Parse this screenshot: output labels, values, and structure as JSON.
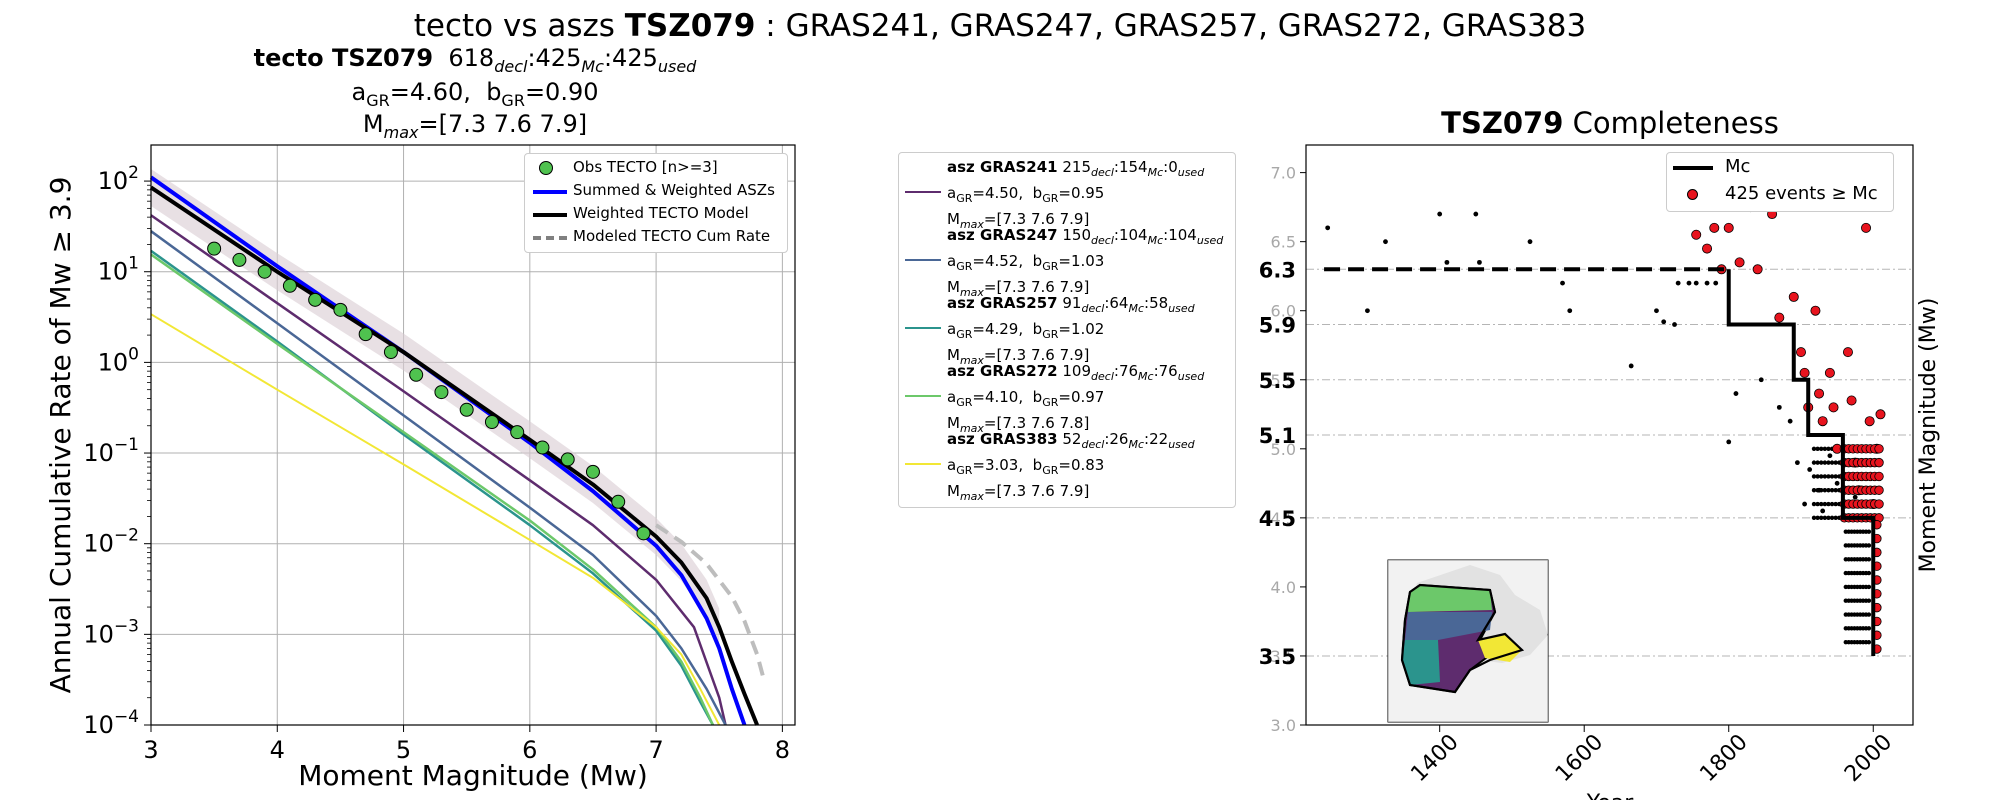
{
  "title": {
    "prefix": "tecto vs aszs ",
    "zone": "TSZ079",
    "suffix": " : GRAS241, GRAS247, GRAS257, GRAS272, GRAS383"
  },
  "left_panel": {
    "title_bold": "tecto TSZ079",
    "counts": {
      "decl": "618",
      "mc": "425",
      "used": "425"
    },
    "sub_decl": "decl",
    "sub_mc": "Mc",
    "sub_used": "used",
    "a_gr": "4.60",
    "b_gr": "0.90",
    "mmax": "[7.3 7.6 7.9]"
  },
  "chart_data": [
    {
      "type": "line",
      "title": "",
      "xlabel": "Moment Magnitude (Mw)",
      "ylabel": "Annual Cumulative Rate of Mw  ≥  3.9",
      "xlim": [
        3,
        8.1
      ],
      "ylim": [
        0.0001,
        250
      ],
      "yscale": "log",
      "xticks": [
        "3",
        "4",
        "5",
        "6",
        "7",
        "8"
      ],
      "yticks": [
        {
          "base": "10",
          "exp": "2",
          "value": 100
        },
        {
          "base": "10",
          "exp": "1",
          "value": 10
        },
        {
          "base": "10",
          "exp": "0",
          "value": 1
        },
        {
          "base": "10",
          "exp": "−1",
          "value": 0.1
        },
        {
          "base": "10",
          "exp": "−2",
          "value": 0.01
        },
        {
          "base": "10",
          "exp": "−3",
          "value": 0.001
        },
        {
          "base": "10",
          "exp": "−4",
          "value": 0.0001
        }
      ],
      "grid": true,
      "legend_position": "top-right",
      "legend": [
        {
          "label": "Obs TECTO [n>=3]",
          "kind": "marker",
          "color": "#4fc24f"
        },
        {
          "label": "Summed & Weighted ASZs",
          "kind": "line",
          "color": "#0000ff"
        },
        {
          "label": "Weighted TECTO Model",
          "kind": "line",
          "color": "#000000"
        },
        {
          "label": "Modeled TECTO Cum Rate",
          "kind": "dash",
          "color": "#808080"
        }
      ],
      "observed": {
        "x": [
          3.5,
          3.7,
          3.9,
          4.1,
          4.3,
          4.5,
          4.7,
          4.9,
          5.1,
          5.3,
          5.5,
          5.7,
          5.9,
          6.1,
          6.3,
          6.5,
          6.7,
          6.9
        ],
        "y": [
          18,
          13.5,
          10,
          7,
          4.9,
          3.8,
          2.05,
          1.3,
          0.73,
          0.47,
          0.3,
          0.22,
          0.17,
          0.115,
          0.085,
          0.062,
          0.029,
          0.013
        ]
      },
      "series": [
        {
          "legend_index": 1,
          "color": "#0000ff",
          "width": 4,
          "x": [
            3,
            4,
            5,
            6,
            6.5,
            7,
            7.2,
            7.4,
            7.5,
            7.6,
            7.7
          ],
          "y": [
            110,
            11.5,
            1.3,
            0.13,
            0.038,
            0.0095,
            0.0045,
            0.0015,
            0.0007,
            0.00025,
            0.0001
          ]
        },
        {
          "legend_index": 2,
          "color": "#000000",
          "width": 4,
          "x": [
            3,
            4,
            5,
            6,
            6.5,
            7,
            7.2,
            7.4,
            7.5,
            7.6,
            7.7,
            7.8
          ],
          "y": [
            85,
            10,
            1.3,
            0.14,
            0.045,
            0.012,
            0.0062,
            0.0025,
            0.0012,
            0.0005,
            0.00022,
            0.0001
          ]
        },
        {
          "legend_index": 3,
          "color": "#bdbdbd",
          "width": 4,
          "dash": true,
          "x": [
            7.0,
            7.2,
            7.4,
            7.6,
            7.7,
            7.8,
            7.85
          ],
          "y": [
            0.016,
            0.0105,
            0.006,
            0.0026,
            0.0014,
            0.0006,
            0.00033
          ]
        },
        {
          "asz_index": 0,
          "color": "#5e2c6e",
          "width": 2.5,
          "x": [
            3,
            4,
            5,
            6,
            6.5,
            7,
            7.3,
            7.5,
            7.55
          ],
          "y": [
            42,
            4.5,
            0.48,
            0.05,
            0.016,
            0.004,
            0.0012,
            0.0002,
            0.0001
          ]
        },
        {
          "asz_index": 1,
          "color": "#4a6796",
          "width": 2.5,
          "x": [
            3,
            4,
            5,
            6,
            6.5,
            7,
            7.2,
            7.4,
            7.55
          ],
          "y": [
            28,
            2.7,
            0.26,
            0.025,
            0.0075,
            0.0016,
            0.0007,
            0.00025,
            0.0001
          ]
        },
        {
          "asz_index": 2,
          "color": "#2b948d",
          "width": 2.5,
          "x": [
            3,
            4,
            5,
            6,
            6.5,
            7,
            7.2,
            7.35,
            7.45
          ],
          "y": [
            17,
            1.7,
            0.16,
            0.016,
            0.0047,
            0.0011,
            0.00045,
            0.00018,
            0.0001
          ]
        },
        {
          "asz_index": 3,
          "color": "#6cc86a",
          "width": 2.5,
          "x": [
            3,
            4,
            5,
            6,
            6.5,
            7,
            7.2,
            7.35,
            7.45
          ],
          "y": [
            15.5,
            1.6,
            0.17,
            0.018,
            0.0052,
            0.0012,
            0.0005,
            0.0002,
            0.0001
          ]
        },
        {
          "asz_index": 4,
          "color": "#f2e735",
          "width": 2,
          "x": [
            3,
            4,
            5,
            6,
            6.5,
            7,
            7.2,
            7.35,
            7.5
          ],
          "y": [
            3.4,
            0.5,
            0.075,
            0.011,
            0.0042,
            0.0012,
            0.0006,
            0.00025,
            0.0001
          ]
        }
      ]
    },
    {
      "type": "scatter",
      "title_bold": "TSZ079",
      "title_rest": " Completeness",
      "xlabel": "Year",
      "ylabel": "Moment Magnitude (Mw)",
      "xlim": [
        1215,
        2055
      ],
      "ylim": [
        3.0,
        7.2
      ],
      "xticks": [
        "1400",
        "1600",
        "1800",
        "2000"
      ],
      "yticks_grey": [
        "3.0",
        "3.5",
        "4.0",
        "4.5",
        "5.0",
        "5.5",
        "6.0",
        "6.5",
        "7.0"
      ],
      "yticks_bold": [
        "3.5",
        "4.5",
        "5.1",
        "5.5",
        "5.9",
        "6.3"
      ],
      "mc_lines": [
        3.5,
        4.5,
        5.1,
        5.5,
        5.9,
        6.3
      ],
      "legend_position": "top-right",
      "legend": [
        {
          "label": "Mc",
          "kind": "line",
          "color": "#000000"
        },
        {
          "label": "425 events ≥  Mc",
          "kind": "marker",
          "color": "#e8141e"
        }
      ],
      "mc_step": {
        "x": [
          1800,
          1800,
          1890,
          1890,
          1910,
          1910,
          1958,
          1958,
          2000,
          2000
        ],
        "y": [
          6.3,
          5.9,
          5.9,
          5.5,
          5.5,
          5.1,
          5.1,
          4.5,
          4.5,
          3.5
        ],
        "dash_from": 1240
      },
      "events_below": {
        "x": [
          1245,
          1300,
          1325,
          1400,
          1410,
          1450,
          1455,
          1525,
          1570,
          1580,
          1665,
          1700,
          1710,
          1725,
          1730,
          1745,
          1755,
          1770,
          1782,
          1800,
          1810,
          1845,
          1870,
          1885,
          1895,
          1905,
          1912,
          1925,
          1930,
          1940,
          1950,
          1960,
          1968,
          1975,
          1985
        ],
        "y": [
          6.6,
          6.0,
          6.5,
          6.7,
          6.35,
          6.7,
          6.35,
          6.5,
          6.2,
          6.0,
          5.6,
          6.0,
          5.92,
          5.9,
          6.2,
          6.2,
          6.2,
          6.2,
          6.2,
          5.05,
          5.4,
          5.5,
          5.3,
          5.2,
          4.9,
          4.6,
          4.85,
          4.7,
          4.55,
          4.95,
          4.75,
          4.6,
          4.8,
          4.65,
          4.7
        ]
      },
      "events_above": {
        "x": [
          1755,
          1770,
          1780,
          1790,
          1800,
          1815,
          1830,
          1840,
          1860,
          1870,
          1880,
          1890,
          1900,
          1905,
          1910,
          1920,
          1925,
          1930,
          1940,
          1945,
          1950,
          1960,
          1965,
          1970,
          1975,
          1980,
          1990,
          1995,
          2000,
          2005,
          2010
        ],
        "y": [
          6.55,
          6.45,
          6.6,
          6.3,
          6.6,
          6.35,
          6.75,
          6.3,
          6.7,
          5.95,
          6.85,
          6.1,
          5.7,
          5.55,
          5.3,
          6.0,
          5.4,
          5.2,
          5.55,
          5.3,
          5.0,
          6.8,
          5.7,
          5.35,
          4.9,
          4.7,
          6.6,
          5.2,
          4.6,
          5.0,
          5.25
        ]
      }
    }
  ],
  "asz_legend": [
    {
      "name": "asz GRAS241",
      "decl": "215",
      "mc": "154",
      "used": "0",
      "a_gr": "4.50",
      "b_gr": "0.95",
      "mmax": "[7.3 7.6 7.9]",
      "color": "#5e2c6e"
    },
    {
      "name": "asz GRAS247",
      "decl": "150",
      "mc": "104",
      "used": "104",
      "a_gr": "4.52",
      "b_gr": "1.03",
      "mmax": "[7.3 7.6 7.9]",
      "color": "#4a6796"
    },
    {
      "name": "asz GRAS257",
      "decl": "91",
      "mc": "64",
      "used": "58",
      "a_gr": "4.29",
      "b_gr": "1.02",
      "mmax": "[7.3 7.6 7.9]",
      "color": "#2b948d"
    },
    {
      "name": "asz GRAS272",
      "decl": "109",
      "mc": "76",
      "used": "76",
      "a_gr": "4.10",
      "b_gr": "0.97",
      "mmax": "[7.3 7.6 7.8]",
      "color": "#6cc86a"
    },
    {
      "name": "asz GRAS383",
      "decl": "52",
      "mc": "26",
      "used": "22",
      "a_gr": "3.03",
      "b_gr": "0.83",
      "mmax": "[7.3 7.6 7.9]",
      "color": "#f2e735"
    }
  ],
  "labels": {
    "a": "a",
    "b": "b",
    "gr": "GR",
    "mmax_m": "M",
    "mmax_sub": "max"
  }
}
